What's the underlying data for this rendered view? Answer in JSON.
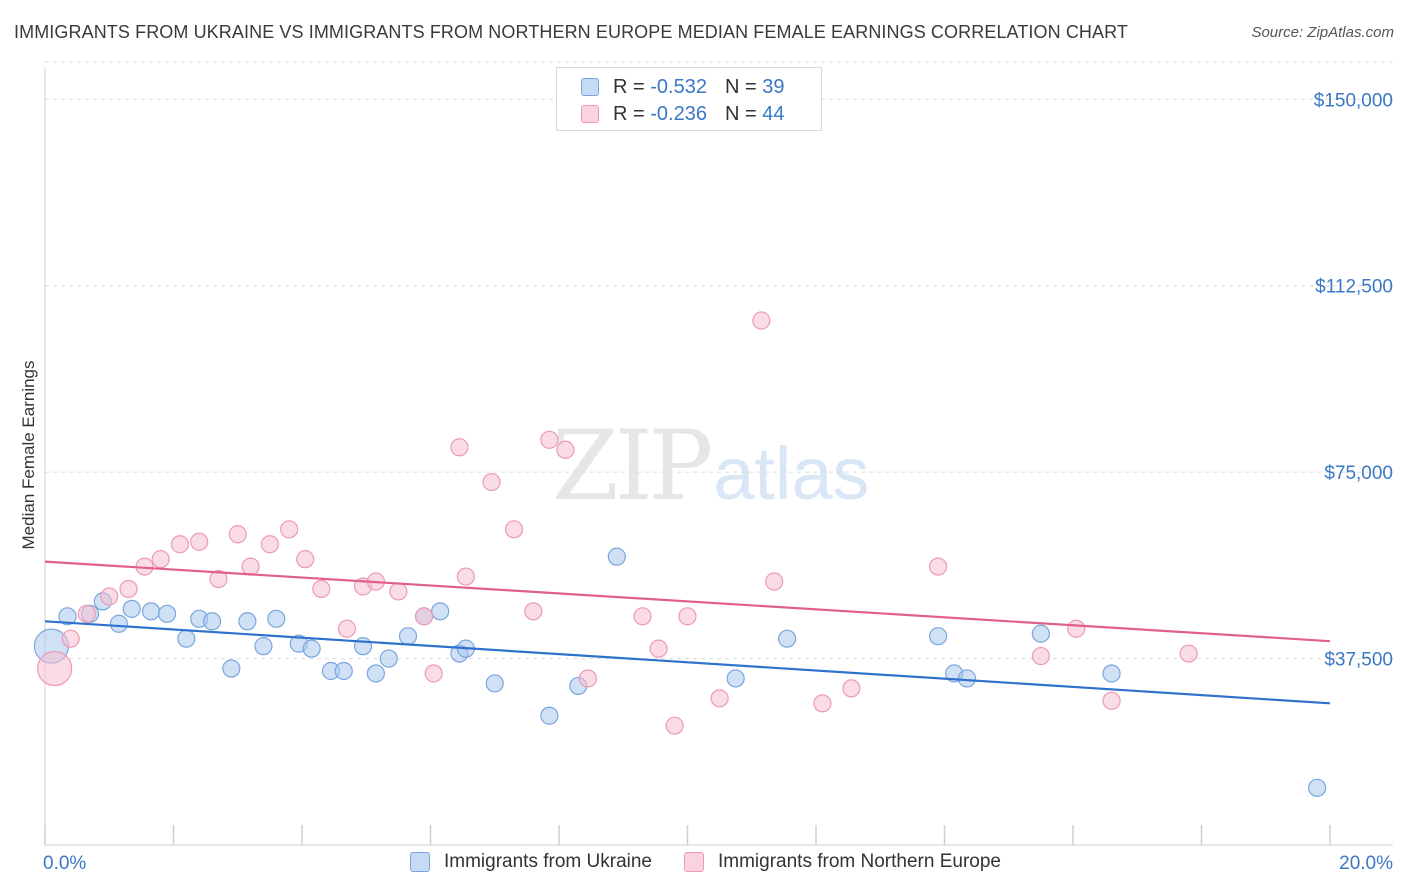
{
  "title": "IMMIGRANTS FROM UKRAINE VS IMMIGRANTS FROM NORTHERN EUROPE MEDIAN FEMALE EARNINGS CORRELATION CHART",
  "source": "Source: ZipAtlas.com",
  "watermark": {
    "part1": "ZIP",
    "part2": "atlas"
  },
  "legend": {
    "r_label": "R = ",
    "n_label": "N = ",
    "rows": [
      {
        "r": "-0.532",
        "n": "39"
      },
      {
        "r": "-0.236",
        "n": "44"
      }
    ]
  },
  "colors": {
    "ukraine_fill": "#a9c8ef",
    "ukraine_stroke": "#7aa6de",
    "ukraine_line": "#2f72cc",
    "neurope_fill": "#f6bfd0",
    "neurope_stroke": "#ee9ab4",
    "neurope_line": "#e0608a",
    "grid": "#dcdcdc",
    "axis_text": "#3b78c4"
  },
  "chart_data": {
    "type": "scatter",
    "title": "IMMIGRANTS FROM UKRAINE VS IMMIGRANTS FROM NORTHERN EUROPE MEDIAN FEMALE EARNINGS CORRELATION CHART",
    "xlabel": "",
    "ylabel": "Median Female Earnings",
    "xlim": [
      0,
      20
    ],
    "ylim": [
      0,
      157500
    ],
    "x_tick_labels": [
      "0.0%",
      "20.0%"
    ],
    "y_ticks": [
      37500,
      75000,
      112500,
      150000
    ],
    "y_tick_labels": [
      "$37,500",
      "$75,000",
      "$112,500",
      "$150,000"
    ],
    "grid": true,
    "legend_position": "top-center",
    "series": [
      {
        "name": "Immigrants from Ukraine",
        "color": "#a9c8ef",
        "trend": {
          "x": [
            0,
            20
          ],
          "y": [
            45000,
            28500
          ]
        },
        "points": [
          {
            "x": 0.1,
            "y": 40000,
            "big": true
          },
          {
            "x": 0.35,
            "y": 46000
          },
          {
            "x": 0.7,
            "y": 46500
          },
          {
            "x": 0.9,
            "y": 49000
          },
          {
            "x": 1.15,
            "y": 44500
          },
          {
            "x": 1.35,
            "y": 47500
          },
          {
            "x": 1.65,
            "y": 47000
          },
          {
            "x": 1.9,
            "y": 46500
          },
          {
            "x": 2.2,
            "y": 41500
          },
          {
            "x": 2.4,
            "y": 45500
          },
          {
            "x": 2.6,
            "y": 45000
          },
          {
            "x": 2.9,
            "y": 35500
          },
          {
            "x": 3.15,
            "y": 45000
          },
          {
            "x": 3.4,
            "y": 40000
          },
          {
            "x": 3.6,
            "y": 45500
          },
          {
            "x": 3.95,
            "y": 40500
          },
          {
            "x": 4.15,
            "y": 39500
          },
          {
            "x": 4.45,
            "y": 35000
          },
          {
            "x": 4.65,
            "y": 35000
          },
          {
            "x": 4.95,
            "y": 40000
          },
          {
            "x": 5.15,
            "y": 34500
          },
          {
            "x": 5.35,
            "y": 37500
          },
          {
            "x": 5.65,
            "y": 42000
          },
          {
            "x": 5.9,
            "y": 46000
          },
          {
            "x": 6.15,
            "y": 47000
          },
          {
            "x": 6.45,
            "y": 38500
          },
          {
            "x": 6.55,
            "y": 39500
          },
          {
            "x": 7.0,
            "y": 32500
          },
          {
            "x": 7.85,
            "y": 26000
          },
          {
            "x": 8.3,
            "y": 32000
          },
          {
            "x": 8.9,
            "y": 58000
          },
          {
            "x": 10.75,
            "y": 33500
          },
          {
            "x": 11.55,
            "y": 41500
          },
          {
            "x": 13.9,
            "y": 42000
          },
          {
            "x": 14.15,
            "y": 34500
          },
          {
            "x": 14.35,
            "y": 33500
          },
          {
            "x": 15.5,
            "y": 42500
          },
          {
            "x": 16.6,
            "y": 34500
          },
          {
            "x": 19.8,
            "y": 11500
          }
        ]
      },
      {
        "name": "Immigrants from Northern Europe",
        "color": "#f6bfd0",
        "trend": {
          "x": [
            0,
            20
          ],
          "y": [
            57000,
            41000
          ]
        },
        "points": [
          {
            "x": 0.15,
            "y": 35500,
            "big": true
          },
          {
            "x": 0.4,
            "y": 41500
          },
          {
            "x": 0.65,
            "y": 46500
          },
          {
            "x": 1.0,
            "y": 50000
          },
          {
            "x": 1.3,
            "y": 51500
          },
          {
            "x": 1.55,
            "y": 56000
          },
          {
            "x": 1.8,
            "y": 57500
          },
          {
            "x": 2.1,
            "y": 60500
          },
          {
            "x": 2.4,
            "y": 61000
          },
          {
            "x": 2.7,
            "y": 53500
          },
          {
            "x": 3.0,
            "y": 62500
          },
          {
            "x": 3.2,
            "y": 56000
          },
          {
            "x": 3.5,
            "y": 60500
          },
          {
            "x": 3.8,
            "y": 63500
          },
          {
            "x": 4.05,
            "y": 57500
          },
          {
            "x": 4.3,
            "y": 51500
          },
          {
            "x": 4.7,
            "y": 43500
          },
          {
            "x": 4.95,
            "y": 52000
          },
          {
            "x": 5.15,
            "y": 53000
          },
          {
            "x": 5.5,
            "y": 51000
          },
          {
            "x": 5.9,
            "y": 46000
          },
          {
            "x": 6.05,
            "y": 34500
          },
          {
            "x": 6.45,
            "y": 80000
          },
          {
            "x": 6.55,
            "y": 54000
          },
          {
            "x": 6.95,
            "y": 73000
          },
          {
            "x": 7.3,
            "y": 63500
          },
          {
            "x": 7.6,
            "y": 47000
          },
          {
            "x": 7.85,
            "y": 81500
          },
          {
            "x": 8.1,
            "y": 79500
          },
          {
            "x": 8.45,
            "y": 33500
          },
          {
            "x": 9.3,
            "y": 46000
          },
          {
            "x": 9.55,
            "y": 39500
          },
          {
            "x": 9.8,
            "y": 24000
          },
          {
            "x": 10.0,
            "y": 46000
          },
          {
            "x": 10.5,
            "y": 29500
          },
          {
            "x": 11.15,
            "y": 105500
          },
          {
            "x": 11.35,
            "y": 53000
          },
          {
            "x": 12.1,
            "y": 28500
          },
          {
            "x": 12.55,
            "y": 31500
          },
          {
            "x": 13.9,
            "y": 56000
          },
          {
            "x": 15.5,
            "y": 38000
          },
          {
            "x": 16.05,
            "y": 43500
          },
          {
            "x": 16.6,
            "y": 29000
          },
          {
            "x": 17.8,
            "y": 38500
          }
        ]
      }
    ]
  }
}
